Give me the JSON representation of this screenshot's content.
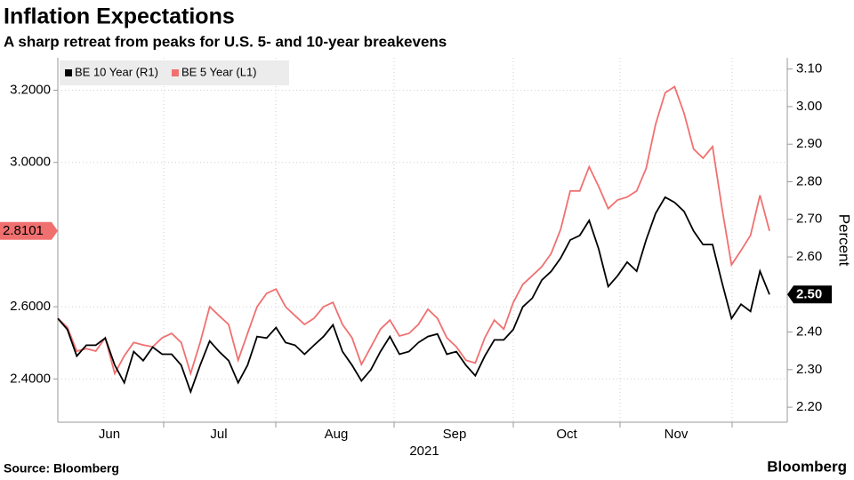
{
  "chart_data": {
    "type": "line",
    "title": "Inflation Expectations",
    "subtitle": "A sharp retreat from peaks for U.S. 5- and 10-year breakevens",
    "source": "Source: Bloomberg",
    "brand": "Bloomberg",
    "x_labels": [
      "Jun",
      "Jul",
      "Aug",
      "Sep",
      "Oct",
      "Nov"
    ],
    "x_year": "2021",
    "y2_label": "Percent",
    "ylim": [
      2.28,
      3.29
    ],
    "yticks": [
      {
        "value": 2.4,
        "label": "2.4000"
      },
      {
        "value": 2.6,
        "label": "2.6000"
      },
      {
        "value": 3.0,
        "label": "3.0000"
      },
      {
        "value": 3.2,
        "label": "3.2000"
      }
    ],
    "y2lim": [
      2.16,
      3.13
    ],
    "y2ticks": [
      {
        "value": 2.2,
        "label": "2.20"
      },
      {
        "value": 2.3,
        "label": "2.30"
      },
      {
        "value": 2.4,
        "label": "2.40"
      },
      {
        "value": 2.5,
        "label": "2.50"
      },
      {
        "value": 2.6,
        "label": "2.60"
      },
      {
        "value": 2.7,
        "label": "2.70"
      },
      {
        "value": 2.8,
        "label": "2.80"
      },
      {
        "value": 2.9,
        "label": "2.90"
      },
      {
        "value": 3.0,
        "label": "3.00"
      },
      {
        "value": 3.1,
        "label": "3.10"
      }
    ],
    "grid": true,
    "legend": "upper left",
    "series": [
      {
        "name": "BE 10 Year (R1)",
        "color": "#000000",
        "axis": "y2",
        "last_label": "2.50",
        "values": [
          2.436,
          2.407,
          2.336,
          2.365,
          2.365,
          2.384,
          2.312,
          2.265,
          2.348,
          2.324,
          2.36,
          2.341,
          2.341,
          2.312,
          2.241,
          2.312,
          2.376,
          2.348,
          2.324,
          2.265,
          2.312,
          2.388,
          2.384,
          2.412,
          2.372,
          2.365,
          2.341,
          2.365,
          2.388,
          2.419,
          2.348,
          2.312,
          2.27,
          2.3,
          2.348,
          2.388,
          2.341,
          2.348,
          2.372,
          2.388,
          2.395,
          2.341,
          2.348,
          2.312,
          2.284,
          2.336,
          2.379,
          2.379,
          2.407,
          2.467,
          2.49,
          2.538,
          2.562,
          2.597,
          2.645,
          2.657,
          2.697,
          2.621,
          2.521,
          2.55,
          2.586,
          2.562,
          2.645,
          2.716,
          2.759,
          2.745,
          2.721,
          2.669,
          2.633,
          2.633,
          2.531,
          2.436,
          2.474,
          2.455,
          2.562,
          2.5
        ]
      },
      {
        "name": "BE 5 Year (L1)",
        "color": "#f07070",
        "axis": "y",
        "last_label": "2.8101",
        "values": [
          2.568,
          2.543,
          2.477,
          2.484,
          2.477,
          2.514,
          2.415,
          2.464,
          2.501,
          2.494,
          2.489,
          2.514,
          2.526,
          2.501,
          2.415,
          2.501,
          2.6,
          2.575,
          2.551,
          2.452,
          2.526,
          2.6,
          2.637,
          2.649,
          2.6,
          2.575,
          2.551,
          2.568,
          2.6,
          2.612,
          2.551,
          2.514,
          2.44,
          2.489,
          2.538,
          2.563,
          2.519,
          2.526,
          2.551,
          2.593,
          2.568,
          2.514,
          2.489,
          2.452,
          2.444,
          2.514,
          2.563,
          2.538,
          2.612,
          2.662,
          2.686,
          2.711,
          2.748,
          2.815,
          2.921,
          2.921,
          2.988,
          2.933,
          2.872,
          2.896,
          2.904,
          2.921,
          2.983,
          3.106,
          3.193,
          3.21,
          3.136,
          3.037,
          3.012,
          3.044,
          2.872,
          2.716,
          2.756,
          2.798,
          2.909,
          2.8101
        ]
      }
    ]
  }
}
